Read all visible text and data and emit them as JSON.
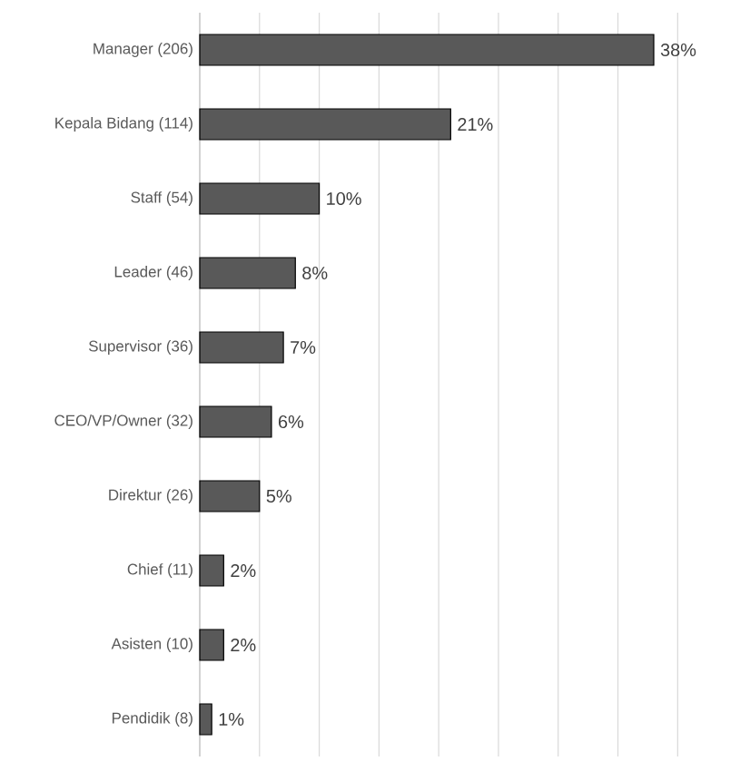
{
  "chart_data": {
    "type": "bar",
    "orientation": "horizontal",
    "categories": [
      "Manager (206)",
      "Kepala Bidang (114)",
      "Staff (54)",
      "Leader (46)",
      "Supervisor (36)",
      "CEO/VP/Owner (32)",
      "Direktur (26)",
      "Chief (11)",
      "Asisten (10)",
      "Pendidik (8)"
    ],
    "values": [
      38,
      21,
      10,
      8,
      7,
      6,
      5,
      2,
      2,
      1
    ],
    "value_labels": [
      "38%",
      "21%",
      "10%",
      "8%",
      "7%",
      "6%",
      "5%",
      "2%",
      "2%",
      "1%"
    ],
    "color": "#595959",
    "tick_labels": "y",
    "grid": "x"
  }
}
